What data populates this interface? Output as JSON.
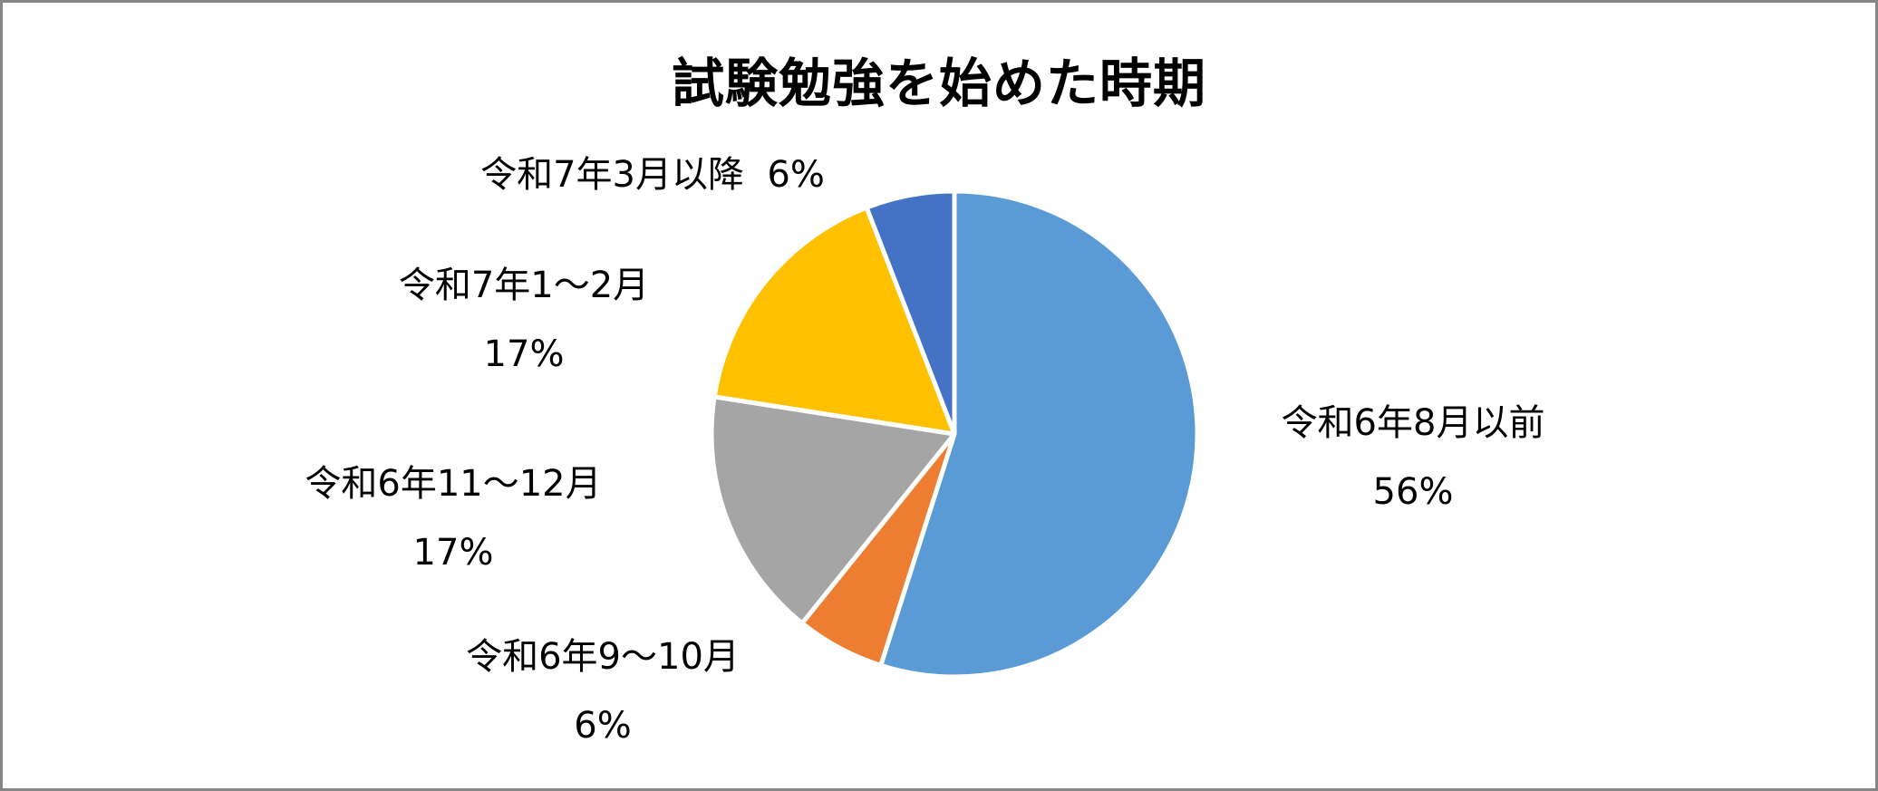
{
  "chart": {
    "title": "試験勉強を始めた時期",
    "border_color": "#868686"
  },
  "slices": [
    {
      "label": "令和6年8月以前",
      "pct_text": "56%",
      "value": 56,
      "color": "#5B9BD5"
    },
    {
      "label": "令和6年9〜10月",
      "pct_text": "6%",
      "value": 6,
      "color": "#ED7D31"
    },
    {
      "label": "令和6年11〜12月",
      "pct_text": "17%",
      "value": 17,
      "color": "#A5A5A5"
    },
    {
      "label": "令和7年1〜2月",
      "pct_text": "17%",
      "value": 17,
      "color": "#FFC000"
    },
    {
      "label": "令和7年3月以降",
      "pct_text": "6%",
      "value": 6,
      "color": "#4472C4"
    }
  ],
  "labels": {
    "s0_name": "令和6年8月以前",
    "s0_pct": "56%",
    "s1_name": "令和6年9〜10月",
    "s1_pct": "6%",
    "s2_name": "令和6年11〜12月",
    "s2_pct": "17%",
    "s3_name": "令和7年1〜2月",
    "s3_pct": "17%",
    "s4_inline": "令和7年3月以降  6%"
  },
  "chart_data": {
    "type": "pie",
    "title": "試験勉強を始めた時期",
    "categories": [
      "令和6年8月以前",
      "令和6年9〜10月",
      "令和6年11〜12月",
      "令和7年1〜2月",
      "令和7年3月以降"
    ],
    "values": [
      56,
      6,
      17,
      17,
      6
    ],
    "units": "%",
    "colors": [
      "#5B9BD5",
      "#ED7D31",
      "#A5A5A5",
      "#FFC000",
      "#4472C4"
    ],
    "start_angle_deg": 0,
    "direction": "clockwise",
    "data_labels": "category and percentage, outside end",
    "legend": "none"
  }
}
